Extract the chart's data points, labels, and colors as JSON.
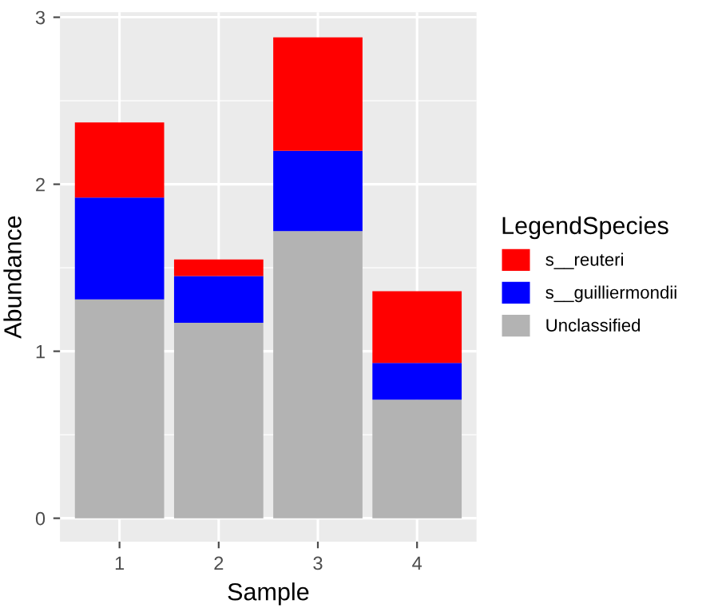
{
  "chart_data": {
    "type": "bar",
    "stacked": true,
    "xlabel": "Sample",
    "ylabel": "Abundance",
    "legend_title": "LegendSpecies",
    "categories": [
      "1",
      "2",
      "3",
      "4"
    ],
    "series": [
      {
        "name": "Unclassified",
        "color": "#b3b3b3",
        "values": [
          1.31,
          1.17,
          1.72,
          0.71
        ]
      },
      {
        "name": "s__guilliermondii",
        "color": "#0000ff",
        "values": [
          0.61,
          0.28,
          0.48,
          0.22
        ]
      },
      {
        "name": "s__reuteri",
        "color": "#ff0000",
        "values": [
          0.45,
          0.1,
          0.68,
          0.43
        ]
      }
    ],
    "ylim": [
      -0.14,
      3.03
    ],
    "yticks": [
      0,
      1,
      2,
      3
    ],
    "grid": true,
    "legend": "right"
  }
}
